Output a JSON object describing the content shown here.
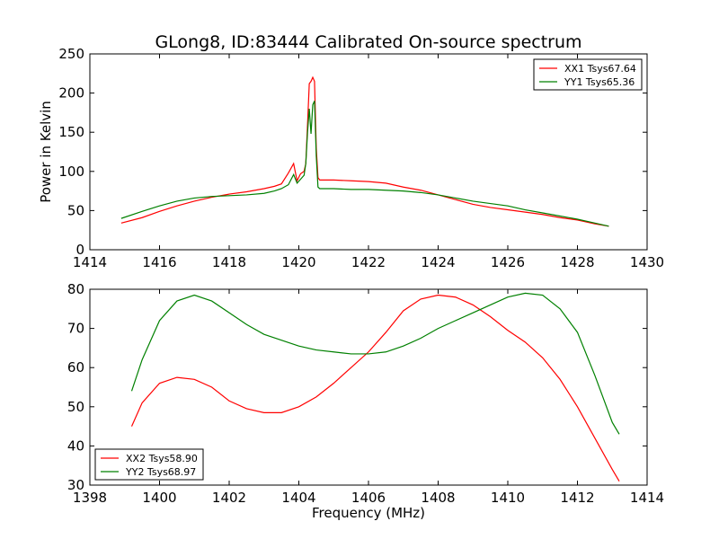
{
  "title": "GLong8, ID:83444 Calibrated On-source spectrum",
  "colors": {
    "xx": "#ff0000",
    "yy": "#008000"
  },
  "chart_data": [
    {
      "type": "line",
      "ylabel": "Power in Kelvin",
      "xlabel": "",
      "xlim": [
        1414,
        1430
      ],
      "ylim": [
        0,
        250
      ],
      "xticks": [
        "1414",
        "1416",
        "1418",
        "1420",
        "1422",
        "1424",
        "1426",
        "1428",
        "1430"
      ],
      "yticks": [
        "0",
        "50",
        "100",
        "150",
        "200",
        "250"
      ],
      "legend": "top-right",
      "series": [
        {
          "name": "XX1 Tsys67.64",
          "color": "#ff0000",
          "x": [
            1414.9,
            1415.5,
            1416,
            1416.5,
            1417,
            1417.5,
            1418,
            1418.5,
            1419,
            1419.3,
            1419.5,
            1419.7,
            1419.85,
            1419.95,
            1420.05,
            1420.15,
            1420.2,
            1420.25,
            1420.3,
            1420.35,
            1420.4,
            1420.45,
            1420.5,
            1420.55,
            1420.6,
            1421,
            1421.5,
            1422,
            1422.5,
            1423,
            1423.5,
            1424,
            1424.5,
            1425,
            1425.5,
            1426,
            1426.5,
            1427,
            1427.5,
            1428,
            1428.5,
            1428.9
          ],
          "y": [
            34,
            41,
            49,
            56,
            62,
            67,
            71,
            74,
            78,
            81,
            84,
            98,
            110,
            88,
            97,
            100,
            110,
            160,
            212,
            215,
            220,
            215,
            130,
            92,
            89,
            89,
            88,
            87,
            85,
            80,
            76,
            70,
            64,
            58,
            54,
            51,
            48,
            45,
            41,
            38,
            33,
            30
          ]
        },
        {
          "name": "YY1 Tsys65.36",
          "color": "#008000",
          "x": [
            1414.9,
            1415.5,
            1416,
            1416.5,
            1417,
            1417.5,
            1418,
            1418.5,
            1419,
            1419.3,
            1419.5,
            1419.7,
            1419.85,
            1419.95,
            1420.05,
            1420.15,
            1420.2,
            1420.25,
            1420.3,
            1420.35,
            1420.4,
            1420.45,
            1420.5,
            1420.55,
            1420.6,
            1421,
            1421.5,
            1422,
            1422.5,
            1423,
            1423.5,
            1424,
            1424.5,
            1425,
            1425.5,
            1426,
            1426.5,
            1427,
            1427.5,
            1428,
            1428.5,
            1428.9
          ],
          "y": [
            40,
            49,
            56,
            62,
            66,
            68,
            69,
            70,
            72,
            75,
            78,
            83,
            96,
            85,
            90,
            95,
            110,
            150,
            180,
            148,
            185,
            190,
            120,
            80,
            78,
            78,
            77,
            77,
            76,
            75,
            73,
            70,
            66,
            62,
            59,
            56,
            51,
            47,
            43,
            39,
            34,
            30
          ]
        }
      ]
    },
    {
      "type": "line",
      "ylabel": "",
      "xlabel": "Frequency (MHz)",
      "xlim": [
        1398,
        1414
      ],
      "ylim": [
        30,
        80
      ],
      "xticks": [
        "1398",
        "1400",
        "1402",
        "1404",
        "1406",
        "1408",
        "1410",
        "1412",
        "1414"
      ],
      "yticks": [
        "30",
        "40",
        "50",
        "60",
        "70",
        "80"
      ],
      "legend": "bottom-left",
      "series": [
        {
          "name": "XX2 Tsys58.90",
          "color": "#ff0000",
          "x": [
            1399.2,
            1399.5,
            1400,
            1400.5,
            1401,
            1401.5,
            1402,
            1402.5,
            1403,
            1403.5,
            1404,
            1404.5,
            1405,
            1405.5,
            1406,
            1406.5,
            1407,
            1407.5,
            1408,
            1408.5,
            1409,
            1409.5,
            1410,
            1410.5,
            1411,
            1411.5,
            1412,
            1412.5,
            1413,
            1413.2
          ],
          "y": [
            45,
            51,
            56,
            57.5,
            57,
            55,
            51.5,
            49.5,
            48.5,
            48.5,
            50,
            52.5,
            56,
            60,
            64,
            69,
            74.5,
            77.5,
            78.5,
            78,
            76,
            73,
            69.5,
            66.5,
            62.5,
            57,
            50,
            42,
            34,
            31
          ]
        },
        {
          "name": "YY2 Tsys68.97",
          "color": "#008000",
          "x": [
            1399.2,
            1399.5,
            1400,
            1400.5,
            1401,
            1401.5,
            1402,
            1402.5,
            1403,
            1403.5,
            1404,
            1404.5,
            1405,
            1405.5,
            1406,
            1406.5,
            1407,
            1407.5,
            1408,
            1408.5,
            1409,
            1409.5,
            1410,
            1410.5,
            1411,
            1411.5,
            1412,
            1412.5,
            1413,
            1413.2
          ],
          "y": [
            54,
            62,
            72,
            77,
            78.5,
            77,
            74,
            71,
            68.5,
            67,
            65.5,
            64.5,
            64,
            63.5,
            63.5,
            64,
            65.5,
            67.5,
            70,
            72,
            74,
            76,
            78,
            79,
            78.5,
            75,
            69,
            58,
            46,
            43
          ]
        }
      ]
    }
  ]
}
